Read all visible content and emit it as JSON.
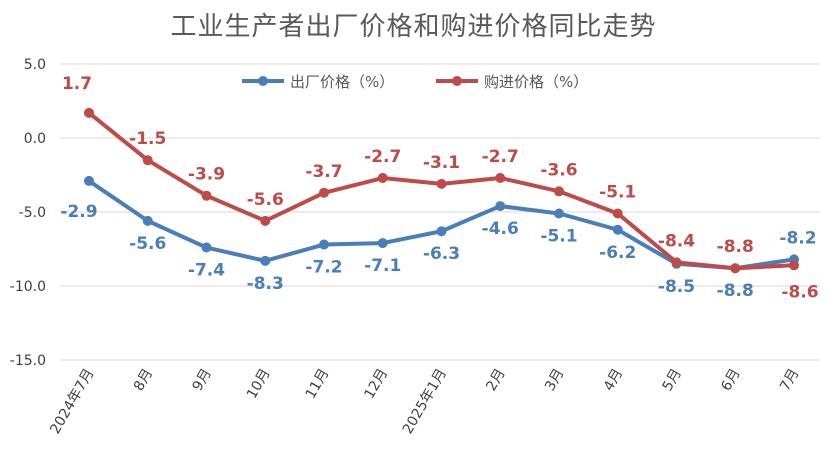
{
  "chart_data": {
    "type": "line",
    "title": "工业生产者出厂价格和购进价格同比走势",
    "categories": [
      "2024年7月",
      "8月",
      "9月",
      "10月",
      "11月",
      "12月",
      "2025年1月",
      "2月",
      "3月",
      "4月",
      "5月",
      "6月",
      "7月"
    ],
    "y_ticks": [
      "5.0",
      "0.0",
      "-5.0",
      "-10.0",
      "-15.0"
    ],
    "ylim": [
      -15,
      5
    ],
    "grid": "horizontal",
    "legend_position": "top",
    "series": [
      {
        "name": "出厂价格（%）",
        "color": "#4a7ebb",
        "values": [
          -2.9,
          -5.6,
          -7.4,
          -8.3,
          -7.2,
          -7.1,
          -6.3,
          -4.6,
          -5.1,
          -6.2,
          -8.5,
          -8.8,
          -8.2
        ],
        "labels": [
          "-2.9",
          "-5.6",
          "-7.4",
          "-8.3",
          "-7.2",
          "-7.1",
          "-6.3",
          "-4.6",
          "-5.1",
          "-6.2",
          "-8.5",
          "-8.8",
          "-8.2"
        ]
      },
      {
        "name": "购进价格（%）",
        "color": "#be4b48",
        "values": [
          1.7,
          -1.5,
          -3.9,
          -5.6,
          -3.7,
          -2.7,
          -3.1,
          -2.7,
          -3.6,
          -5.1,
          -8.4,
          -8.8,
          -8.6
        ],
        "labels": [
          "1.7",
          "-1.5",
          "-3.9",
          "-5.6",
          "-3.7",
          "-2.7",
          "-3.1",
          "-2.7",
          "-3.6",
          "-5.1",
          "-8.4",
          "-8.8",
          "-8.6"
        ]
      }
    ]
  }
}
